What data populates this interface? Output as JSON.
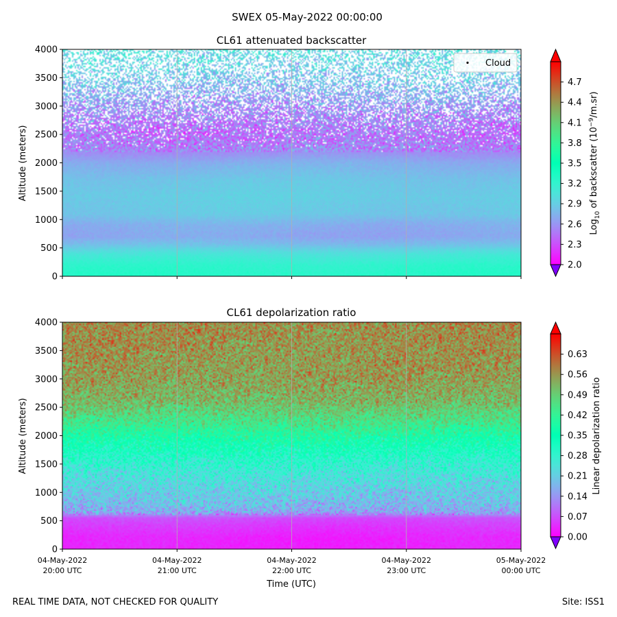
{
  "figure": {
    "suptitle": "SWEX 05-May-2022 00:00:00",
    "footer_left": "REAL TIME DATA, NOT CHECKED FOR QUALITY",
    "footer_right": "Site: ISS1"
  },
  "chart_data": [
    {
      "type": "heatmap",
      "title": "CL61 attenuated backscatter",
      "xlabel": "",
      "ylabel": "Altitude (meters)",
      "ylim": [
        0,
        4000
      ],
      "yticks": [
        "0",
        "500",
        "1000",
        "1500",
        "2000",
        "2500",
        "3000",
        "3500",
        "4000"
      ],
      "yticks_values": [
        0,
        500,
        1000,
        1500,
        2000,
        2500,
        3000,
        3500,
        4000
      ],
      "xticks_visible": false,
      "grid": "vertical",
      "legend": {
        "position": "top-right",
        "entries": [
          "Cloud"
        ]
      },
      "colormap": "rainbow",
      "colorbar": {
        "label_prefix": "Log",
        "label_sub": "10",
        "label_mid": " of backscatter (10",
        "label_sup": "−9",
        "label_suffix": "/m.sr)",
        "range": [
          2.0,
          5.0
        ],
        "ticks": [
          "2.0",
          "2.3",
          "2.6",
          "2.9",
          "3.2",
          "3.5",
          "3.8",
          "4.1",
          "4.4",
          "4.7"
        ],
        "ticks_values": [
          2.0,
          2.3,
          2.6,
          2.9,
          3.2,
          3.5,
          3.8,
          4.1,
          4.4,
          4.7
        ],
        "extend": "both"
      },
      "profile": {
        "altitude_m": [
          0,
          200,
          400,
          550,
          700,
          900,
          1100,
          1400,
          1700,
          2000,
          2200,
          2500,
          3000,
          3500,
          4000
        ],
        "log10_backscatter": [
          3.28,
          3.22,
          3.05,
          2.82,
          2.68,
          2.72,
          2.86,
          2.9,
          2.85,
          2.72,
          2.55,
          2.45,
          2.6,
          2.85,
          3.0
        ]
      }
    },
    {
      "type": "heatmap",
      "title": "CL61 depolarization ratio",
      "xlabel": "Time (UTC)",
      "ylabel": "Altitude (meters)",
      "ylim": [
        0,
        4000
      ],
      "yticks": [
        "0",
        "500",
        "1000",
        "1500",
        "2000",
        "2500",
        "3000",
        "3500",
        "4000"
      ],
      "yticks_values": [
        0,
        500,
        1000,
        1500,
        2000,
        2500,
        3000,
        3500,
        4000
      ],
      "xlim": [
        "04-May-2022 20:00 UTC",
        "05-May-2022 00:00 UTC"
      ],
      "xticks": [
        [
          "04-May-2022",
          "20:00 UTC"
        ],
        [
          "04-May-2022",
          "21:00 UTC"
        ],
        [
          "04-May-2022",
          "22:00 UTC"
        ],
        [
          "04-May-2022",
          "23:00 UTC"
        ],
        [
          "05-May-2022",
          "00:00 UTC"
        ]
      ],
      "grid": "vertical",
      "colormap": "rainbow",
      "colorbar": {
        "label": "Linear depolarization ratio",
        "range": [
          0.0,
          0.7
        ],
        "ticks": [
          "0.00",
          "0.07",
          "0.14",
          "0.21",
          "0.28",
          "0.35",
          "0.42",
          "0.49",
          "0.56",
          "0.63"
        ],
        "ticks_values": [
          0.0,
          0.07,
          0.14,
          0.21,
          0.28,
          0.35,
          0.42,
          0.49,
          0.56,
          0.63
        ],
        "extend": "both"
      },
      "profile": {
        "altitude_m": [
          0,
          200,
          400,
          550,
          650,
          800,
          1000,
          1300,
          1600,
          1900,
          2200,
          2600,
          3000,
          3500,
          4000
        ],
        "linear_depolarization_ratio": [
          0.03,
          0.03,
          0.05,
          0.07,
          0.16,
          0.19,
          0.21,
          0.25,
          0.3,
          0.36,
          0.44,
          0.52,
          0.55,
          0.56,
          0.57
        ]
      }
    }
  ]
}
